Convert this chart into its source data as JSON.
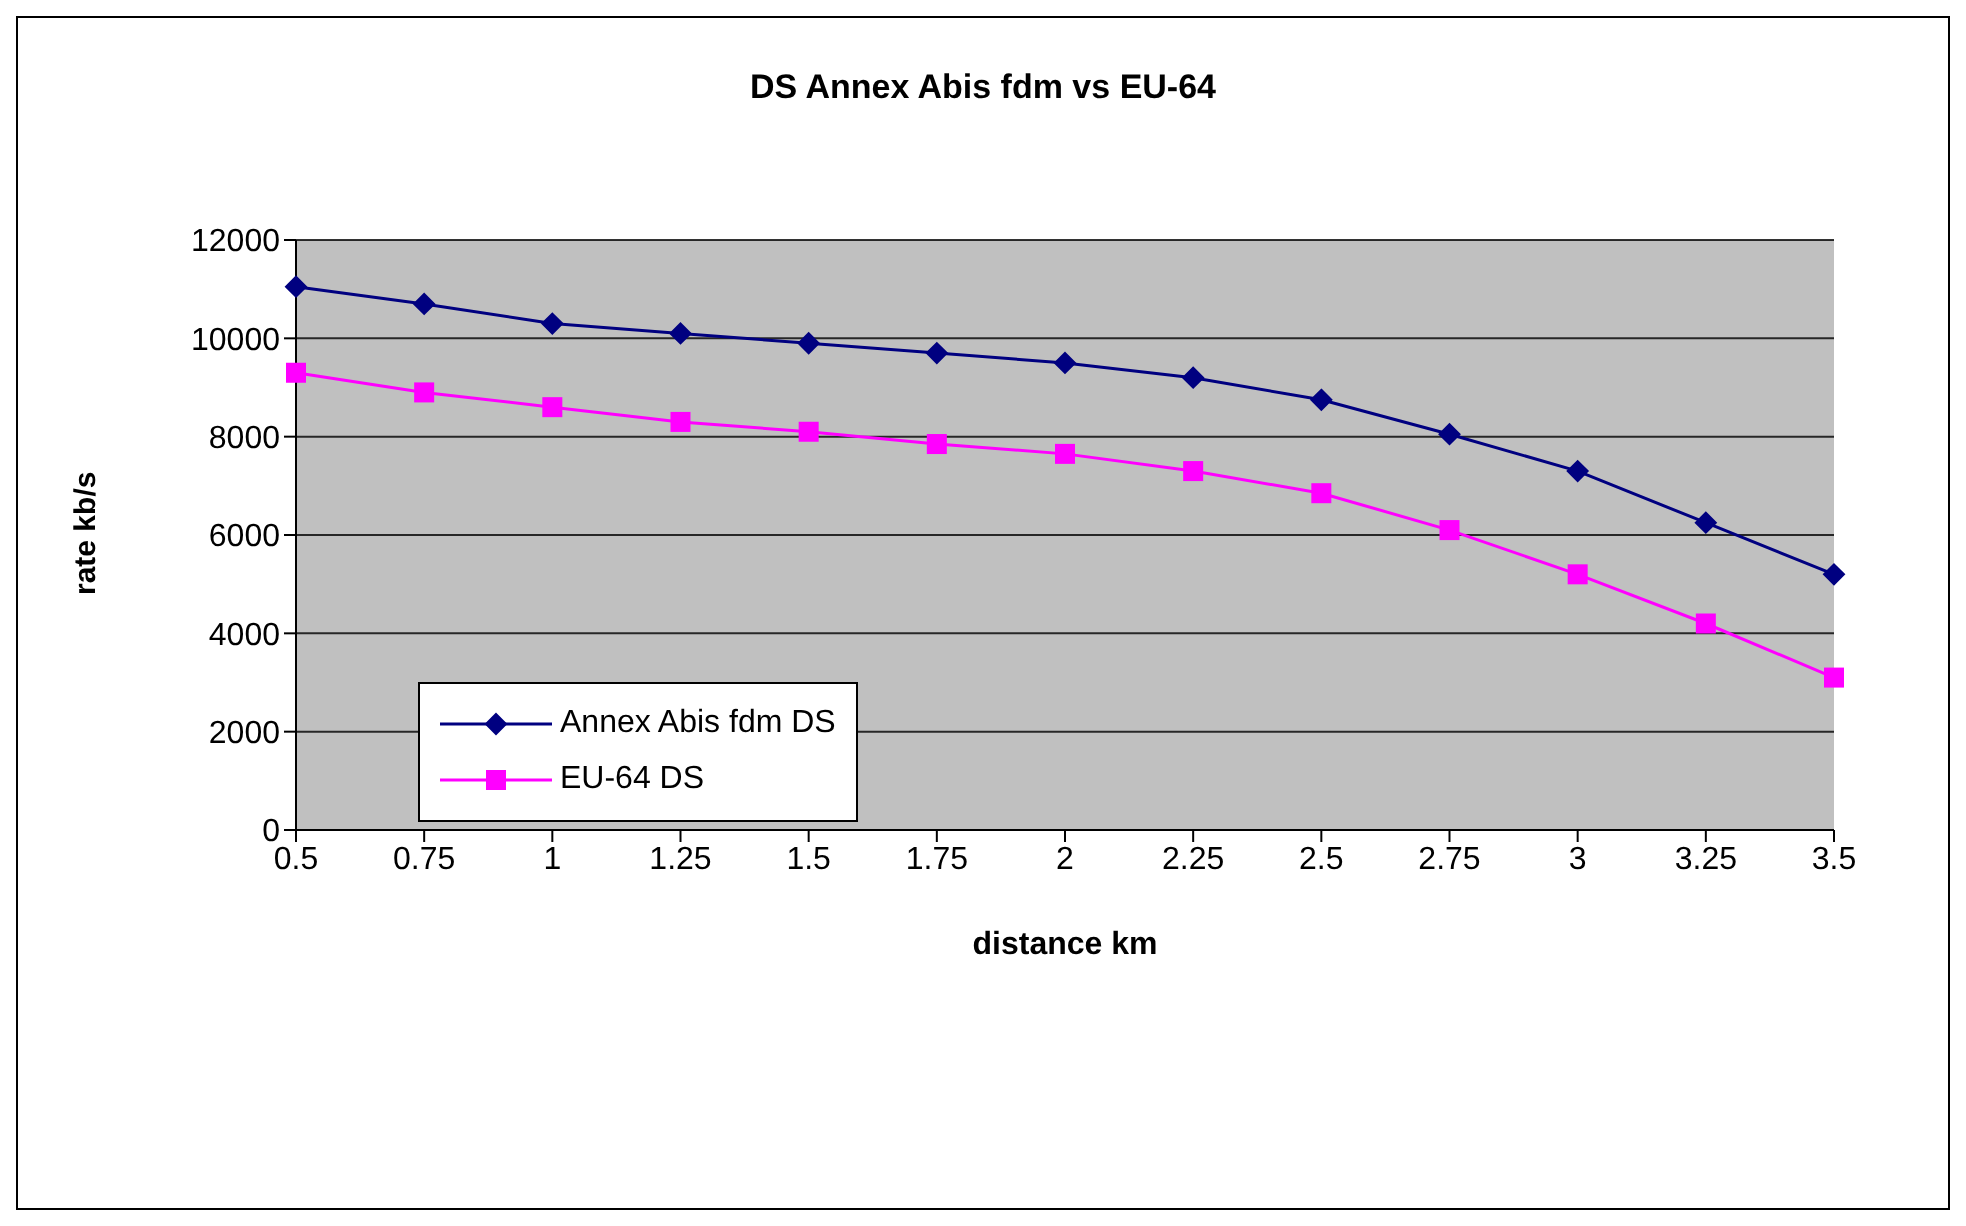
{
  "chart_data": {
    "type": "line",
    "title": "DS Annex Abis fdm vs EU-64",
    "xlabel": "distance km",
    "ylabel": "rate kb/s",
    "categories": [
      "0.5",
      "0.75",
      "1",
      "1.25",
      "1.5",
      "1.75",
      "2",
      "2.25",
      "2.5",
      "2.75",
      "3",
      "3.25",
      "3.5"
    ],
    "series": [
      {
        "name": "Annex Abis fdm DS",
        "color": "#000080",
        "marker": "diamond",
        "values": [
          11050,
          10700,
          10300,
          10100,
          9900,
          9700,
          9500,
          9200,
          8750,
          8050,
          7300,
          6250,
          5200
        ]
      },
      {
        "name": "EU-64 DS",
        "color": "#ff00ff",
        "marker": "square",
        "values": [
          9300,
          8900,
          8600,
          8300,
          8100,
          7850,
          7650,
          7300,
          6850,
          6100,
          5200,
          4200,
          3100
        ]
      }
    ],
    "ylim": [
      0,
      12000
    ],
    "yticks": [
      0,
      2000,
      4000,
      6000,
      8000,
      10000,
      12000
    ],
    "grid": "y",
    "legend": "bottom left"
  }
}
